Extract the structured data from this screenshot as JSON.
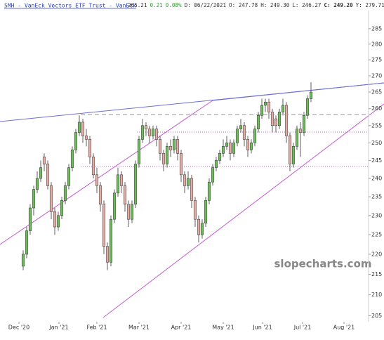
{
  "chart_data": {
    "type": "candlestick",
    "title": "SMH - VanEck Vectors ETF Trust - VanEck",
    "info": [
      "265.21",
      "0.21",
      "0.08%",
      "D: 06/22/2021",
      "O: 247.78",
      "H: 249.30",
      "L: 246.27",
      "C: 249.20",
      "Y: 279.71"
    ],
    "watermark": "slopecharts.com",
    "log_scale": true,
    "up_color": "#6dbb5c",
    "down_color": "#e3aca4",
    "xlim": [
      -6.6,
      98.4
    ],
    "xticks": [
      {
        "value": -1.2,
        "label": "Dec '20"
      },
      {
        "value": 10.2,
        "label": "Jan '21"
      },
      {
        "value": 21,
        "label": "Feb '21"
      },
      {
        "value": 33,
        "label": "Mar '21"
      },
      {
        "value": 45,
        "label": "Apr '21"
      },
      {
        "value": 57,
        "label": "May '21"
      },
      {
        "value": 68.2,
        "label": "Jun '21"
      },
      {
        "value": 79.6,
        "label": "Jul '21"
      },
      {
        "value": 91.4,
        "label": "Aug '21"
      }
    ],
    "ylim": [
      203.6,
      291
    ],
    "yticks": [
      205,
      210,
      215,
      220,
      225,
      230,
      235,
      240,
      245,
      250,
      255,
      260,
      265,
      270,
      275,
      280,
      285
    ],
    "open": [
      217,
      220,
      226,
      232,
      237,
      240,
      246,
      244,
      238,
      231,
      227,
      230,
      234,
      238,
      243,
      248,
      253,
      256,
      252,
      251,
      246,
      241,
      238,
      233,
      222,
      218,
      229,
      236,
      241,
      238,
      233,
      229,
      233,
      244,
      251,
      255,
      254,
      252,
      254,
      251,
      247,
      244,
      249,
      248,
      251,
      247,
      241,
      238,
      240,
      234,
      229,
      225,
      228,
      234,
      239,
      243,
      245,
      247,
      249,
      250,
      247,
      250,
      254,
      255,
      251,
      248,
      250,
      254,
      258,
      261,
      262,
      259,
      257,
      255,
      259,
      261,
      252,
      244,
      249,
      254,
      253,
      258,
      263
    ],
    "high": [
      221,
      227,
      233,
      238,
      242,
      245,
      247,
      245,
      239,
      232,
      231,
      235,
      239,
      244,
      249,
      254,
      258,
      257,
      254,
      252,
      247,
      243,
      239,
      234,
      223,
      230,
      237,
      243,
      242,
      239,
      234,
      234,
      245,
      252,
      257,
      256,
      255,
      255,
      255,
      252,
      248,
      250,
      251,
      252,
      252,
      248,
      242,
      242,
      241,
      235,
      230,
      229,
      235,
      240,
      244,
      246,
      248,
      251,
      252,
      251,
      251,
      255,
      257,
      256,
      252,
      251,
      255,
      259,
      263,
      263,
      263,
      260,
      258,
      260,
      263,
      262,
      253,
      250,
      255,
      256,
      259,
      264,
      268
    ],
    "low": [
      216,
      219,
      225,
      230,
      236,
      239,
      242,
      237,
      229,
      225,
      226,
      229,
      233,
      237,
      242,
      247,
      252,
      250,
      249,
      244,
      240,
      236,
      231,
      220,
      216,
      217,
      228,
      235,
      236,
      231,
      227,
      228,
      232,
      243,
      250,
      252,
      250,
      251,
      249,
      245,
      242,
      243,
      246,
      247,
      245,
      239,
      236,
      237,
      232,
      227,
      223,
      224,
      227,
      233,
      238,
      242,
      244,
      246,
      248,
      245,
      246,
      249,
      253,
      249,
      246,
      247,
      249,
      253,
      257,
      259,
      257,
      253,
      253,
      254,
      258,
      250,
      242,
      243,
      248,
      246,
      252,
      257,
      262
    ],
    "close": [
      220,
      226,
      232,
      237,
      240,
      243,
      244,
      238,
      231,
      227,
      230,
      234,
      238,
      243,
      248,
      253,
      256,
      252,
      251,
      246,
      241,
      238,
      233,
      222,
      218,
      229,
      236,
      241,
      238,
      233,
      229,
      233,
      244,
      251,
      255,
      254,
      252,
      254,
      251,
      247,
      244,
      249,
      248,
      251,
      247,
      241,
      238,
      240,
      234,
      229,
      225,
      228,
      234,
      239,
      243,
      245,
      247,
      249,
      250,
      247,
      250,
      254,
      255,
      251,
      248,
      250,
      254,
      258,
      261,
      262,
      259,
      255,
      255,
      259,
      261,
      252,
      244,
      249,
      254,
      253,
      258,
      263,
      265
    ]
  }
}
